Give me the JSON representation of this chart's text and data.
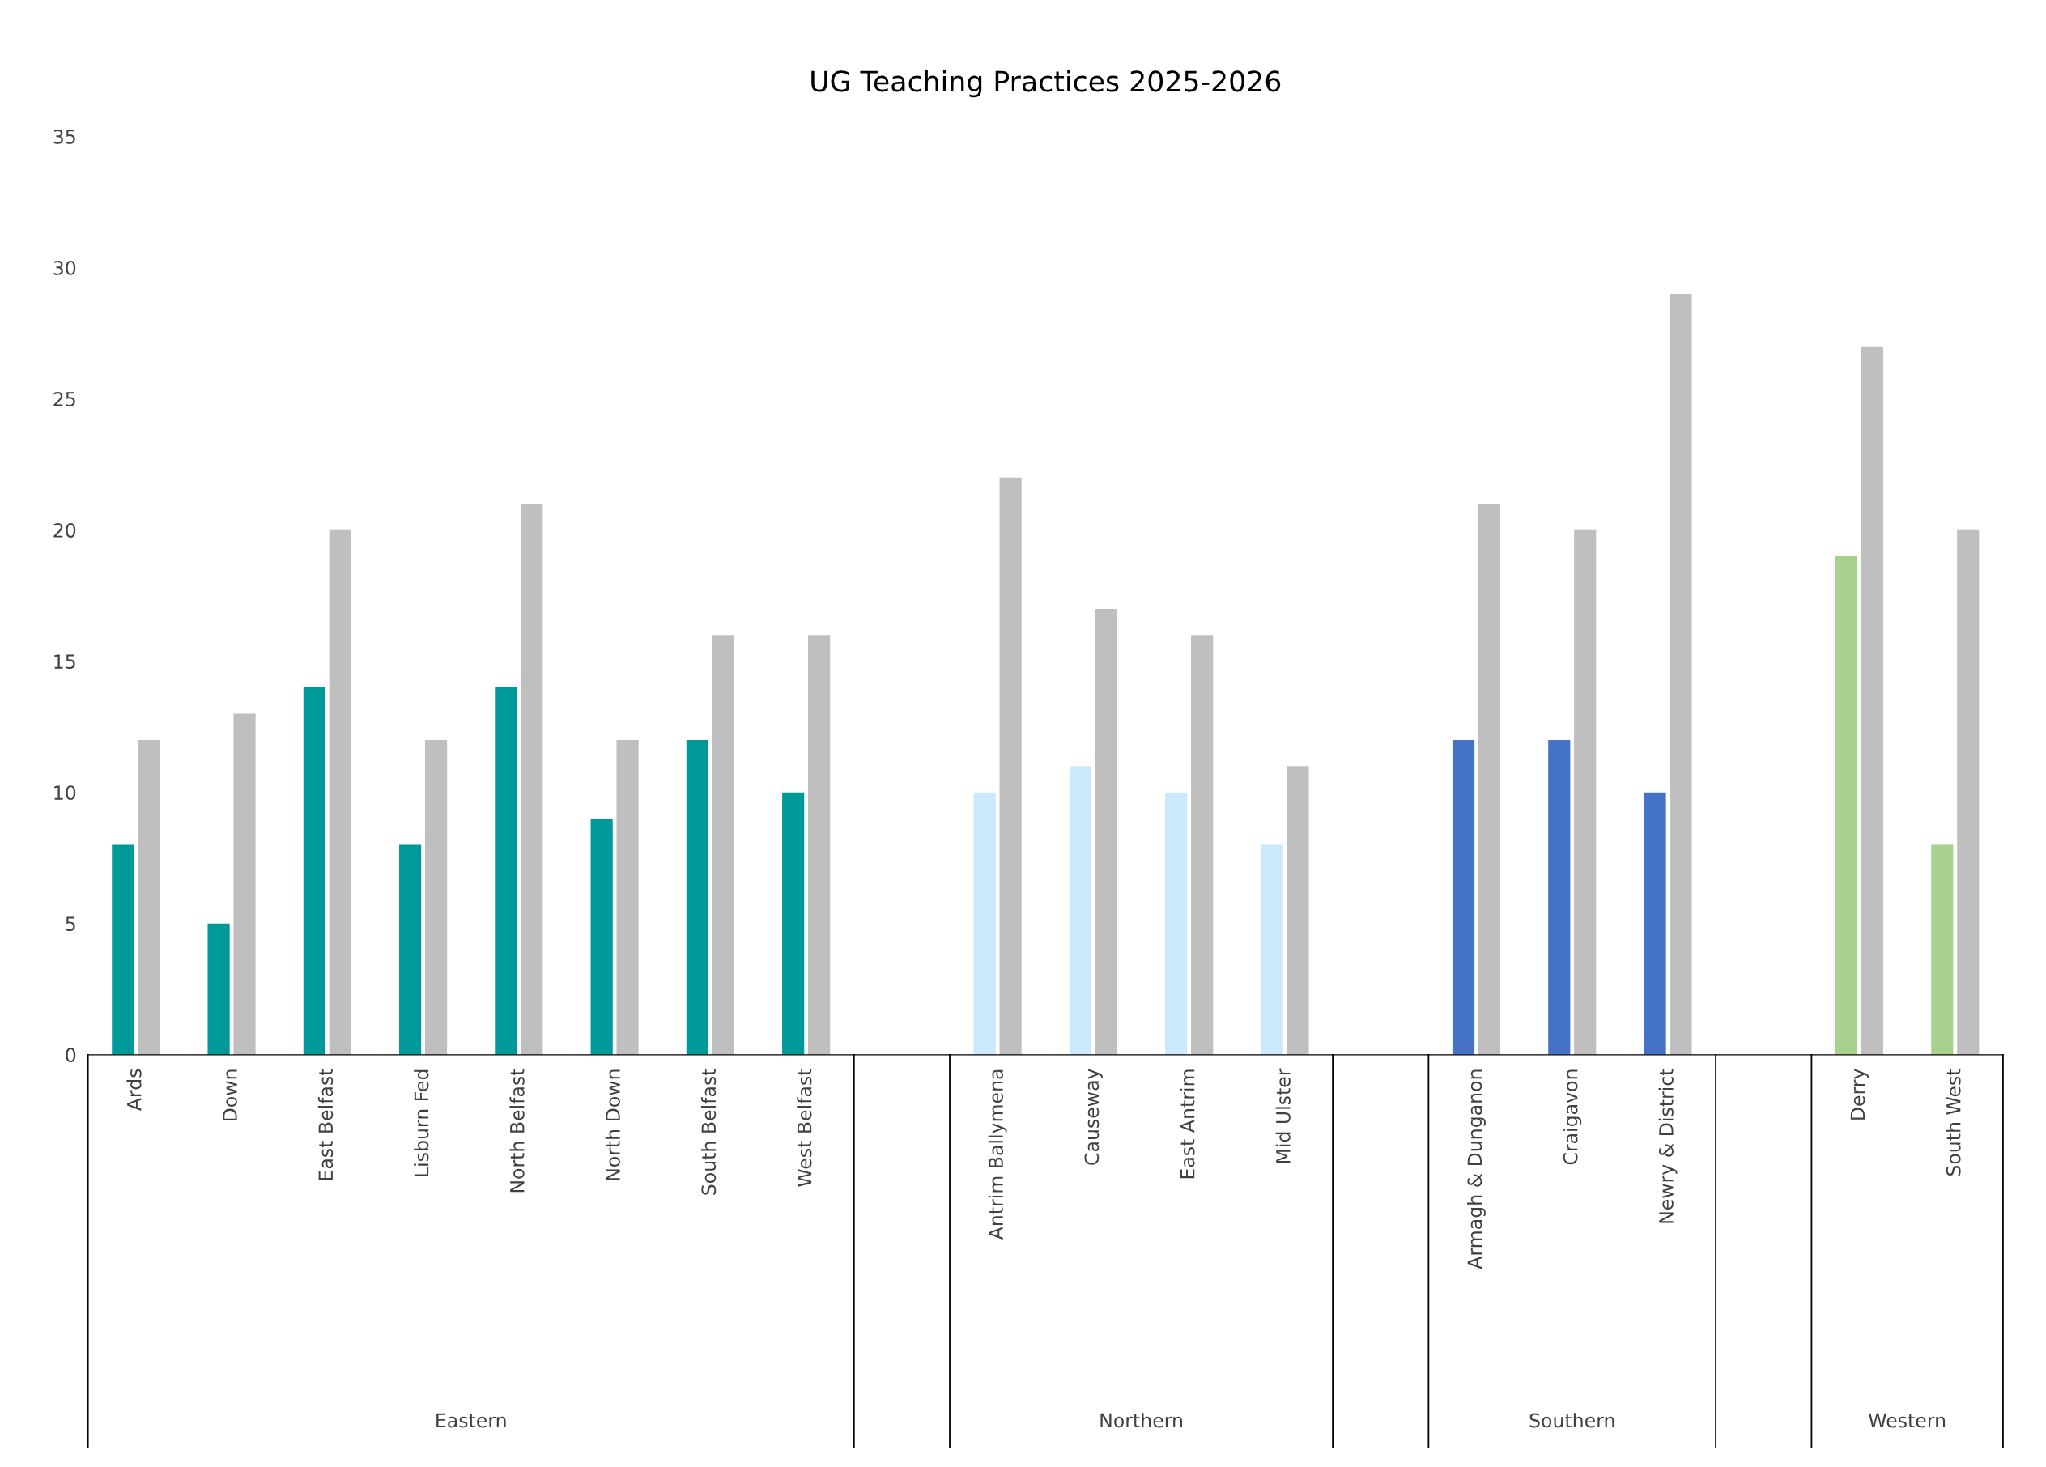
{
  "chart_data": {
    "type": "bar",
    "title": "UG Teaching Practices 2025-2026",
    "categories": [
      "Ards",
      "Down",
      "East Belfast",
      "Lisburn Fed",
      "North Belfast",
      "North Down",
      "South Belfast",
      "West Belfast",
      null,
      "Antrim Ballymena",
      "Causeway",
      "East Antrim",
      "Mid Ulster",
      null,
      "Armagh & Dunganon",
      "Craigavon",
      "Newry & District",
      null,
      "Derry",
      "South West"
    ],
    "series": [
      {
        "colors": [
          "#009999",
          "#009999",
          "#009999",
          "#009999",
          "#009999",
          "#009999",
          "#009999",
          "#009999",
          "#009999",
          "#cce9fb",
          "#cce9fb",
          "#cce9fb",
          "#cce9fb",
          "#cce9fb",
          "#4472c4",
          "#4472c4",
          "#4472c4",
          "#4472c4",
          "#a9d18e",
          "#a9d18e"
        ],
        "values": [
          8,
          5,
          14,
          8,
          14,
          9,
          12,
          10,
          null,
          10,
          11,
          10,
          8,
          null,
          12,
          12,
          10,
          null,
          19,
          8
        ]
      },
      {
        "color": "#bfbfbf",
        "values": [
          12,
          13,
          20,
          12,
          21,
          12,
          16,
          16,
          null,
          22,
          17,
          16,
          11,
          null,
          21,
          20,
          29,
          null,
          27,
          20
        ]
      }
    ],
    "annotations": [
      "Eastern",
      "Northern",
      "Southern",
      "Western"
    ],
    "ylim": [
      0,
      35
    ],
    "yticks": [
      0,
      5,
      10,
      15,
      20,
      25,
      30,
      35
    ],
    "grid": false,
    "legend": false
  }
}
